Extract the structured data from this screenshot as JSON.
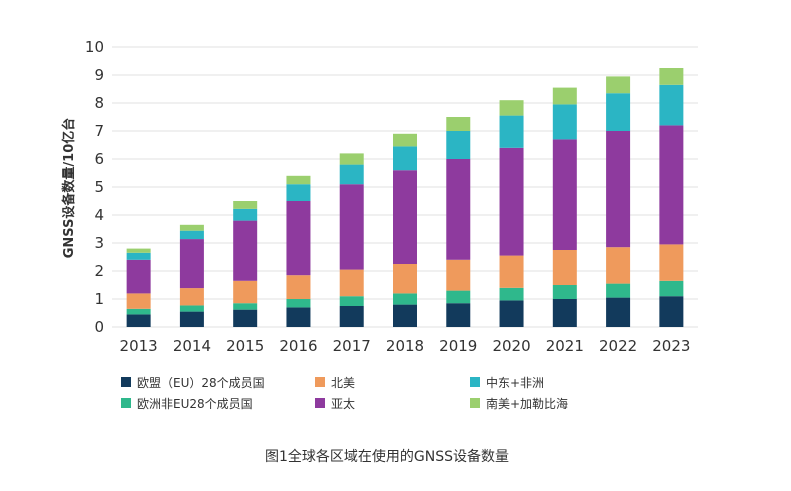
{
  "chart_data": {
    "type": "bar",
    "stacked": true,
    "ylabel": "GNSS设备数量/10亿台",
    "ylim": [
      0,
      10
    ],
    "yticks": [
      0,
      1,
      2,
      3,
      4,
      5,
      6,
      7,
      8,
      9,
      10
    ],
    "categories": [
      "2013",
      "2014",
      "2015",
      "2016",
      "2017",
      "2018",
      "2019",
      "2020",
      "2021",
      "2022",
      "2023"
    ],
    "grid": true,
    "legend_position": "bottom",
    "series": [
      {
        "name": "欧盟（EU）28个成员国",
        "color": "#123a5c",
        "values": [
          0.45,
          0.55,
          0.62,
          0.7,
          0.75,
          0.8,
          0.85,
          0.95,
          1.0,
          1.05,
          1.1
        ]
      },
      {
        "name": "欧洲非EU28个成员国",
        "color": "#2fb88c",
        "values": [
          0.2,
          0.22,
          0.23,
          0.3,
          0.35,
          0.4,
          0.45,
          0.45,
          0.5,
          0.5,
          0.55
        ]
      },
      {
        "name": "北美",
        "color": "#ef9a5c",
        "values": [
          0.55,
          0.62,
          0.8,
          0.85,
          0.95,
          1.05,
          1.1,
          1.15,
          1.25,
          1.3,
          1.3
        ]
      },
      {
        "name": "亚太",
        "color": "#8e3a9e",
        "values": [
          1.2,
          1.75,
          2.15,
          2.65,
          3.05,
          3.35,
          3.6,
          3.85,
          3.95,
          4.15,
          4.25
        ]
      },
      {
        "name": "中东+非洲",
        "color": "#2bb5c4",
        "values": [
          0.25,
          0.3,
          0.42,
          0.6,
          0.7,
          0.85,
          1.0,
          1.15,
          1.25,
          1.35,
          1.45
        ]
      },
      {
        "name": "南美+加勒比海",
        "color": "#9bcf6e",
        "values": [
          0.15,
          0.21,
          0.28,
          0.3,
          0.4,
          0.45,
          0.5,
          0.55,
          0.6,
          0.6,
          0.6
        ]
      }
    ]
  },
  "caption": "图1全球各区域在使用的GNSS设备数量"
}
